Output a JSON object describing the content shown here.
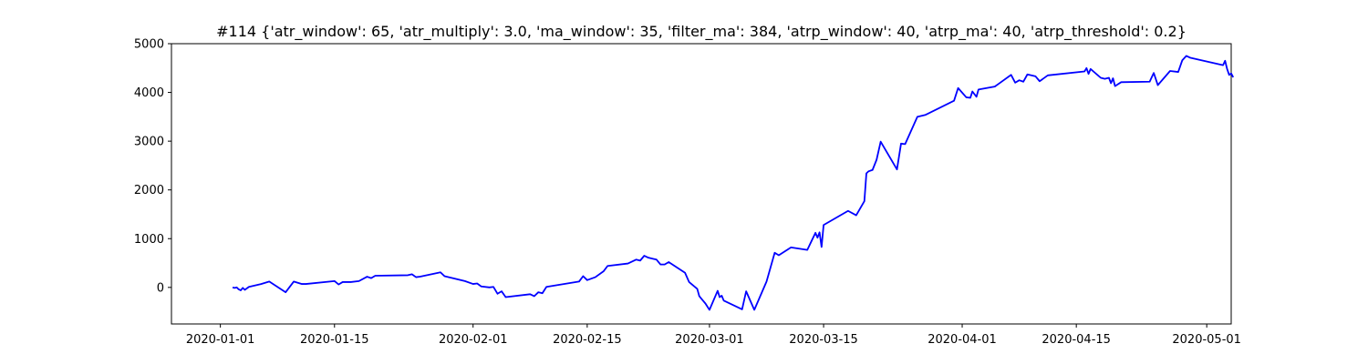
{
  "chart_data": {
    "type": "line",
    "title": "#114 {'atr_window': 65, 'atr_multiply': 3.0, 'ma_window': 35, 'filter_ma': 384, 'atrp_window': 40, 'atrp_ma': 40, 'atrp_threshold': 0.2}",
    "xlabel": "",
    "ylabel": "",
    "xlim": [
      "2019-12-26",
      "2020-05-04"
    ],
    "ylim": [
      -750,
      5000
    ],
    "xticks": [
      "2020-01-01",
      "2020-01-15",
      "2020-02-01",
      "2020-02-15",
      "2020-03-01",
      "2020-03-15",
      "2020-04-01",
      "2020-04-15",
      "2020-05-01"
    ],
    "yticks": [
      0,
      1000,
      2000,
      3000,
      4000,
      5000
    ],
    "grid": false,
    "line_color": "#0000ff",
    "series": [
      {
        "points": [
          [
            "2020-01-02 12:00",
            0
          ],
          [
            "2020-01-02 18:00",
            -10
          ],
          [
            "2020-01-03 00:00",
            0
          ],
          [
            "2020-01-03 06:00",
            -40
          ],
          [
            "2020-01-03 12:00",
            -60
          ],
          [
            "2020-01-03 18:00",
            -10
          ],
          [
            "2020-01-04 00:00",
            -50
          ],
          [
            "2020-01-04 06:00",
            -20
          ],
          [
            "2020-01-04 12:00",
            10
          ],
          [
            "2020-01-06 00:00",
            70
          ],
          [
            "2020-01-07 00:00",
            120
          ],
          [
            "2020-01-09 00:00",
            -100
          ],
          [
            "2020-01-10 00:00",
            120
          ],
          [
            "2020-01-11 00:00",
            70
          ],
          [
            "2020-01-11 12:00",
            70
          ],
          [
            "2020-01-15 00:00",
            130
          ],
          [
            "2020-01-15 12:00",
            60
          ],
          [
            "2020-01-16 00:00",
            110
          ],
          [
            "2020-01-17 00:00",
            110
          ],
          [
            "2020-01-18 00:00",
            130
          ],
          [
            "2020-01-19 00:00",
            220
          ],
          [
            "2020-01-19 12:00",
            190
          ],
          [
            "2020-01-20 00:00",
            240
          ],
          [
            "2020-01-24 00:00",
            250
          ],
          [
            "2020-01-24 12:00",
            270
          ],
          [
            "2020-01-25 00:00",
            210
          ],
          [
            "2020-01-25 12:00",
            220
          ],
          [
            "2020-01-28 00:00",
            310
          ],
          [
            "2020-01-28 12:00",
            230
          ],
          [
            "2020-01-31 00:00",
            130
          ],
          [
            "2020-02-01 00:00",
            70
          ],
          [
            "2020-02-01 12:00",
            80
          ],
          [
            "2020-02-02 00:00",
            20
          ],
          [
            "2020-02-03 00:00",
            0
          ],
          [
            "2020-02-03 12:00",
            10
          ],
          [
            "2020-02-04 00:00",
            -130
          ],
          [
            "2020-02-04 12:00",
            -80
          ],
          [
            "2020-02-05 00:00",
            -200
          ],
          [
            "2020-02-08 00:00",
            -140
          ],
          [
            "2020-02-08 12:00",
            -180
          ],
          [
            "2020-02-09 00:00",
            -100
          ],
          [
            "2020-02-09 12:00",
            -120
          ],
          [
            "2020-02-10 00:00",
            10
          ],
          [
            "2020-02-14 00:00",
            120
          ],
          [
            "2020-02-14 12:00",
            230
          ],
          [
            "2020-02-15 00:00",
            150
          ],
          [
            "2020-02-16 00:00",
            210
          ],
          [
            "2020-02-17 00:00",
            330
          ],
          [
            "2020-02-17 12:00",
            440
          ],
          [
            "2020-02-20 00:00",
            490
          ],
          [
            "2020-02-21 00:00",
            570
          ],
          [
            "2020-02-21 12:00",
            550
          ],
          [
            "2020-02-22 00:00",
            650
          ],
          [
            "2020-02-22 12:00",
            610
          ],
          [
            "2020-02-23 00:00",
            590
          ],
          [
            "2020-02-23 12:00",
            570
          ],
          [
            "2020-02-24 00:00",
            470
          ],
          [
            "2020-02-24 12:00",
            470
          ],
          [
            "2020-02-25 00:00",
            520
          ],
          [
            "2020-02-27 00:00",
            300
          ],
          [
            "2020-02-27 12:00",
            110
          ],
          [
            "2020-02-28 00:00",
            40
          ],
          [
            "2020-02-28 12:00",
            -30
          ],
          [
            "2020-02-28 18:00",
            -180
          ],
          [
            "2020-02-29 00:00",
            -230
          ],
          [
            "2020-02-29 12:00",
            -330
          ],
          [
            "2020-03-01 00:00",
            -460
          ],
          [
            "2020-03-02 00:00",
            -70
          ],
          [
            "2020-03-02 06:00",
            -200
          ],
          [
            "2020-03-02 12:00",
            -170
          ],
          [
            "2020-03-02 18:00",
            -270
          ],
          [
            "2020-03-05 00:00",
            -450
          ],
          [
            "2020-03-05 12:00",
            -80
          ],
          [
            "2020-03-06 12:00",
            -460
          ],
          [
            "2020-03-08 00:00",
            120
          ],
          [
            "2020-03-09 00:00",
            710
          ],
          [
            "2020-03-09 12:00",
            660
          ],
          [
            "2020-03-11 00:00",
            820
          ],
          [
            "2020-03-13 00:00",
            770
          ],
          [
            "2020-03-14 00:00",
            1120
          ],
          [
            "2020-03-14 06:00",
            1020
          ],
          [
            "2020-03-14 12:00",
            1130
          ],
          [
            "2020-03-14 18:00",
            830
          ],
          [
            "2020-03-15 00:00",
            1280
          ],
          [
            "2020-03-18 00:00",
            1570
          ],
          [
            "2020-03-19 00:00",
            1480
          ],
          [
            "2020-03-20 00:00",
            1770
          ],
          [
            "2020-03-20 06:00",
            2340
          ],
          [
            "2020-03-20 12:00",
            2380
          ],
          [
            "2020-03-21 00:00",
            2410
          ],
          [
            "2020-03-21 12:00",
            2620
          ],
          [
            "2020-03-22 00:00",
            2990
          ],
          [
            "2020-03-24 00:00",
            2420
          ],
          [
            "2020-03-24 12:00",
            2950
          ],
          [
            "2020-03-25 00:00",
            2940
          ],
          [
            "2020-03-26 12:00",
            3500
          ],
          [
            "2020-03-27 12:00",
            3540
          ],
          [
            "2020-03-31 00:00",
            3830
          ],
          [
            "2020-03-31 12:00",
            4090
          ],
          [
            "2020-04-01 12:00",
            3900
          ],
          [
            "2020-04-02 00:00",
            3890
          ],
          [
            "2020-04-02 06:00",
            4020
          ],
          [
            "2020-04-02 18:00",
            3910
          ],
          [
            "2020-04-03 00:00",
            4060
          ],
          [
            "2020-04-05 00:00",
            4120
          ],
          [
            "2020-04-05 12:00",
            4180
          ],
          [
            "2020-04-07 00:00",
            4360
          ],
          [
            "2020-04-07 12:00",
            4200
          ],
          [
            "2020-04-08 00:00",
            4250
          ],
          [
            "2020-04-08 12:00",
            4220
          ],
          [
            "2020-04-09 00:00",
            4370
          ],
          [
            "2020-04-10 00:00",
            4330
          ],
          [
            "2020-04-10 12:00",
            4230
          ],
          [
            "2020-04-11 12:00",
            4350
          ],
          [
            "2020-04-16 00:00",
            4430
          ],
          [
            "2020-04-16 06:00",
            4500
          ],
          [
            "2020-04-16 12:00",
            4380
          ],
          [
            "2020-04-16 18:00",
            4480
          ],
          [
            "2020-04-18 00:00",
            4300
          ],
          [
            "2020-04-18 12:00",
            4280
          ],
          [
            "2020-04-19 00:00",
            4300
          ],
          [
            "2020-04-19 06:00",
            4190
          ],
          [
            "2020-04-19 12:00",
            4290
          ],
          [
            "2020-04-19 18:00",
            4130
          ],
          [
            "2020-04-20 12:00",
            4210
          ],
          [
            "2020-04-24 00:00",
            4220
          ],
          [
            "2020-04-24 12:00",
            4400
          ],
          [
            "2020-04-25 00:00",
            4150
          ],
          [
            "2020-04-26 12:00",
            4440
          ],
          [
            "2020-04-27 12:00",
            4420
          ],
          [
            "2020-04-28 00:00",
            4660
          ],
          [
            "2020-04-28 12:00",
            4750
          ],
          [
            "2020-04-29 00:00",
            4710
          ],
          [
            "2020-05-03 00:00",
            4560
          ],
          [
            "2020-05-03 06:00",
            4650
          ],
          [
            "2020-05-03 12:00",
            4480
          ],
          [
            "2020-05-03 18:00",
            4360
          ],
          [
            "2020-05-04 00:00",
            4390
          ],
          [
            "2020-05-04 06:00",
            4310
          ]
        ]
      }
    ]
  }
}
